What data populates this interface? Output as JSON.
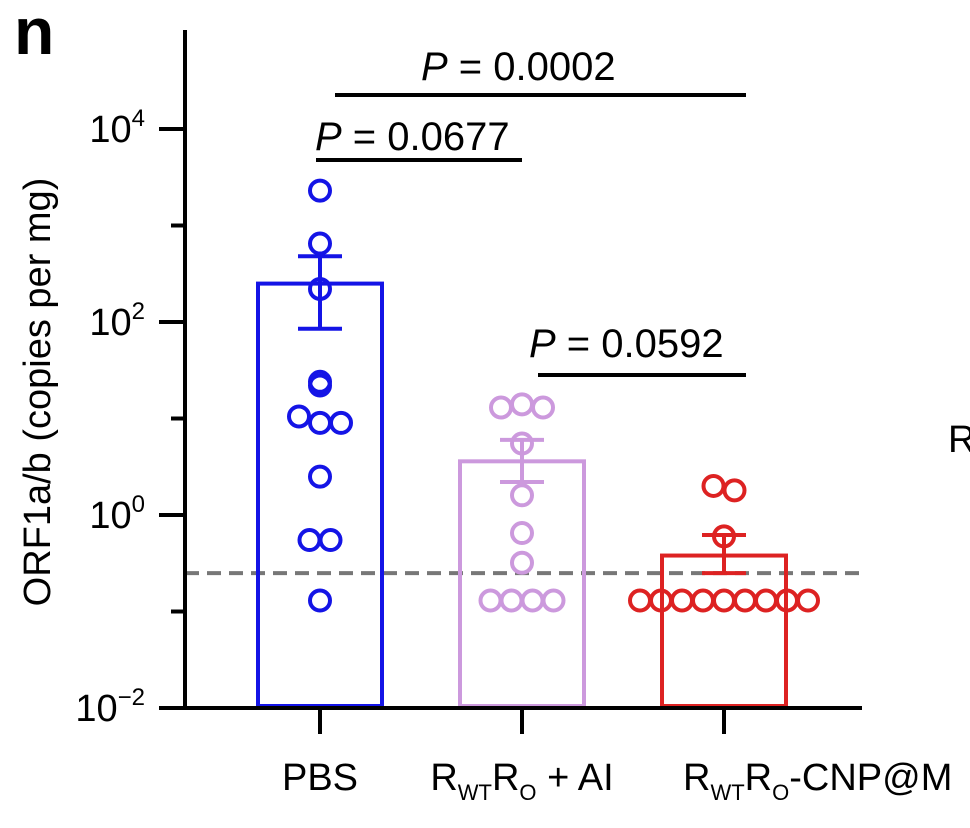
{
  "panel_label": "n",
  "edge_text": "R",
  "chart_data": {
    "type": "bar",
    "ylabel": "ORF1a/b (copies per mg)",
    "yscale": "log",
    "ylim": [
      0.01,
      100000
    ],
    "yticks": [
      {
        "base": "10",
        "exp": "4",
        "value": 10000
      },
      {
        "base": "10",
        "exp": "2",
        "value": 100
      },
      {
        "base": "10",
        "exp": "0",
        "value": 1
      },
      {
        "base": "10",
        "exp": "−2",
        "value": 0.01
      }
    ],
    "detection_limit": 0.25,
    "categories": [
      {
        "label": "PBS"
      },
      {
        "label_parts": [
          "R",
          "WT",
          "R",
          "O",
          " + AI"
        ]
      },
      {
        "label_parts": [
          "R",
          "WT",
          "R",
          "O",
          "-CNP@M"
        ]
      }
    ],
    "colors": [
      "#1414e6",
      "#cc99dd",
      "#dd2222"
    ],
    "means": [
      250,
      3.6,
      0.38
    ],
    "sem_upper": [
      480,
      6.0,
      0.62
    ],
    "sem_lower": [
      85,
      2.2,
      0.25
    ],
    "points": [
      [
        2300,
        650,
        220,
        24,
        22,
        10.5,
        9,
        9,
        2.5,
        0.55,
        0.55,
        0.13
      ],
      [
        13,
        14,
        13,
        5.5,
        1.6,
        0.65,
        0.32,
        0.13,
        0.13,
        0.13,
        0.13
      ],
      [
        2.0,
        1.8,
        0.6,
        0.13,
        0.13,
        0.13,
        0.13,
        0.13,
        0.13,
        0.13,
        0.13,
        0.13
      ]
    ],
    "comparisons": [
      {
        "p_symbol": "P",
        "p_text": " = 0.0677",
        "from": 0,
        "to": 1
      },
      {
        "p_symbol": "P",
        "p_text": " = 0.0002",
        "from": 0,
        "to": 2
      },
      {
        "p_symbol": "P",
        "p_text": " = 0.0592",
        "from": 1,
        "to": 2
      }
    ]
  }
}
